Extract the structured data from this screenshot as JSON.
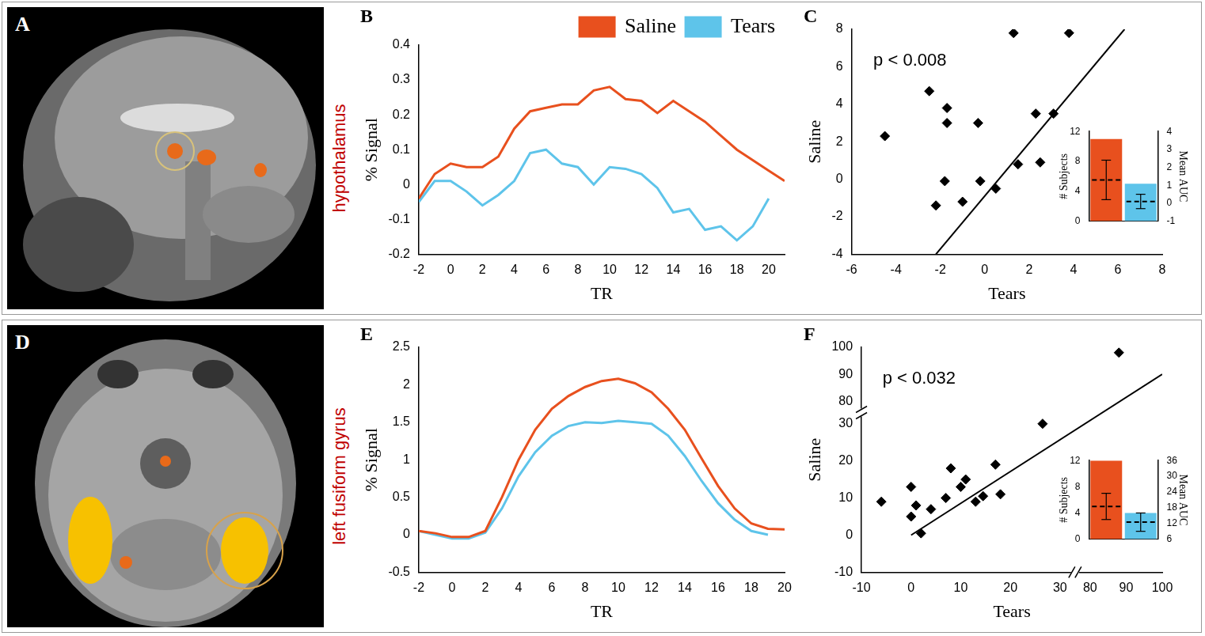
{
  "images": [
    {
      "panel_label": "A",
      "label": "hypothalamus",
      "color": "#c00000"
    },
    {
      "panel_label": "D",
      "label": "left fusiform gyrus",
      "color": "#c00000"
    }
  ],
  "chart_data": [
    {
      "panel_label": "B",
      "type": "line",
      "x_label": "TR",
      "y_label": "% Signal",
      "x": [
        -2,
        -1,
        0,
        1,
        2,
        3,
        4,
        5,
        6,
        7,
        8,
        9,
        10,
        11,
        12,
        13,
        14,
        15,
        16,
        17,
        18,
        19,
        20,
        21
      ],
      "xlim": [
        -2,
        21
      ],
      "xticks": [
        -2,
        0,
        2,
        4,
        6,
        8,
        10,
        12,
        14,
        16,
        18,
        20
      ],
      "ylim": [
        -0.2,
        0.4
      ],
      "yticks": [
        -0.2,
        -0.1,
        0,
        0.1,
        0.2,
        0.3,
        0.4
      ],
      "grid": false,
      "legend": "top right",
      "series": [
        {
          "name": "Saline",
          "color": "#e8501e",
          "values": [
            -0.04,
            0.03,
            0.06,
            0.05,
            0.05,
            0.08,
            0.16,
            0.21,
            0.22,
            0.23,
            0.23,
            0.27,
            0.28,
            0.245,
            0.24,
            0.205,
            0.24,
            0.21,
            0.18,
            0.14,
            0.1,
            0.07,
            0.04,
            0.01
          ]
        },
        {
          "name": "Tears",
          "color": "#5ec4ea",
          "values": [
            -0.05,
            0.01,
            0.01,
            -0.02,
            -0.06,
            -0.03,
            0.01,
            0.09,
            0.1,
            0.06,
            0.05,
            0,
            0.05,
            0.045,
            0.03,
            -0.01,
            -0.08,
            -0.07,
            -0.13,
            -0.12,
            -0.16,
            -0.12,
            -0.04,
            null
          ]
        }
      ]
    },
    {
      "panel_label": "C",
      "type": "scatter",
      "x_label": "Tears",
      "y_label": "Saline",
      "xlim": [
        -6,
        8
      ],
      "xticks": [
        -6,
        -4,
        -2,
        0,
        2,
        4,
        6,
        8
      ],
      "ylim": [
        -4,
        8
      ],
      "yticks": [
        -4,
        -2,
        0,
        2,
        4,
        6,
        8
      ],
      "grid": false,
      "color": "#000000",
      "marker": "diamond",
      "x": [
        -4.5,
        -2.5,
        -2.2,
        -1.7,
        -1.8,
        -1.7,
        -1,
        -0.3,
        -0.2,
        1.3,
        1.5,
        0.5,
        2.3,
        2.5,
        3.1,
        3.8
      ],
      "values": [
        2.3,
        4.7,
        -1.4,
        3.8,
        -0.1,
        3.0,
        -1.2,
        3.0,
        -0.1,
        7.8,
        0.8,
        -0.5,
        3.5,
        0.9,
        3.5,
        7.8
      ],
      "annotation": "p < 0.008",
      "line": {
        "x": [
          -2.2,
          6.3
        ],
        "values": [
          -4,
          8
        ],
        "color": "#000000"
      },
      "inset": {
        "type": "bar",
        "categories": [
          null,
          null
        ],
        "values": [
          11,
          5
        ],
        "colors": [
          "#e8501e",
          "#5ec4ea"
        ],
        "y_label": "# Subjects",
        "ylim": [
          0,
          12
        ],
        "yticks": [
          0,
          4,
          8,
          12
        ],
        "y2_label": "Mean AUC",
        "y2lim": [
          -1,
          4
        ],
        "y2ticks": [
          -1,
          0,
          1,
          2,
          3,
          4
        ],
        "mean_auc": {
          "axis": "y2",
          "values": [
            1.3,
            0.1
          ],
          "errors": [
            1.1,
            0.4
          ]
        }
      }
    },
    {
      "panel_label": "E",
      "type": "line",
      "x_label": "TR",
      "y_label": "% Signal",
      "x": [
        -2,
        -1,
        0,
        1,
        2,
        3,
        4,
        5,
        6,
        7,
        8,
        9,
        10,
        11,
        12,
        13,
        14,
        15,
        16,
        17,
        18,
        19,
        20
      ],
      "xlim": [
        -2,
        20
      ],
      "xticks": [
        -2,
        0,
        2,
        4,
        6,
        8,
        10,
        12,
        14,
        16,
        18,
        20
      ],
      "ylim": [
        -0.5,
        2.5
      ],
      "yticks": [
        -0.5,
        0,
        0.5,
        1,
        1.5,
        2,
        2.5
      ],
      "grid": false,
      "series": [
        {
          "name": "Saline",
          "color": "#e8501e",
          "values": [
            0.05,
            0.02,
            -0.03,
            -0.03,
            0.05,
            0.5,
            1.0,
            1.4,
            1.68,
            1.85,
            1.97,
            2.05,
            2.08,
            2.02,
            1.9,
            1.68,
            1.4,
            1.02,
            0.65,
            0.35,
            0.15,
            0.08,
            0.07
          ]
        },
        {
          "name": "Tears",
          "color": "#5ec4ea",
          "values": [
            0.05,
            0,
            -0.05,
            -0.05,
            0.03,
            0.35,
            0.78,
            1.1,
            1.32,
            1.45,
            1.5,
            1.49,
            1.52,
            1.5,
            1.48,
            1.32,
            1.05,
            0.72,
            0.42,
            0.2,
            0.05,
            0,
            null
          ]
        }
      ]
    },
    {
      "panel_label": "F",
      "type": "scatter",
      "x_label": "Tears",
      "y_label": "Saline",
      "xlim": [
        -10,
        100
      ],
      "xticks": [
        -10,
        0,
        10,
        20,
        30,
        80,
        90,
        100
      ],
      "xbreak": [
        30,
        80
      ],
      "ylim": [
        -10,
        100
      ],
      "yticks": [
        -10,
        0,
        10,
        20,
        30,
        80,
        90,
        100
      ],
      "ybreak": [
        30,
        80
      ],
      "grid": false,
      "color": "#000000",
      "marker": "diamond",
      "x": [
        -6,
        0,
        0,
        1,
        2,
        4,
        7,
        8,
        10,
        11,
        13,
        14.5,
        17,
        18,
        26.5,
        88
      ],
      "values": [
        9,
        13,
        5,
        8,
        0.5,
        7,
        10,
        18,
        13,
        15,
        9,
        10.5,
        19,
        11,
        30,
        98
      ],
      "annotation": "p < 0.032",
      "line": {
        "x": [
          0,
          100
        ],
        "values": [
          0,
          90
        ],
        "color": "#000000"
      },
      "inset": {
        "type": "bar",
        "categories": [
          null,
          null
        ],
        "values": [
          12,
          4
        ],
        "colors": [
          "#e8501e",
          "#5ec4ea"
        ],
        "y_label": "# Subjects",
        "ylim": [
          0,
          12
        ],
        "yticks": [
          0,
          4,
          8,
          12
        ],
        "y2_label": "Mean AUC",
        "y2lim": [
          6,
          36
        ],
        "y2ticks": [
          6,
          12,
          18,
          24,
          30,
          36
        ],
        "mean_auc": {
          "axis": "y2",
          "values": [
            18.5,
            12.5
          ],
          "errors": [
            5,
            3.5
          ]
        }
      }
    }
  ]
}
